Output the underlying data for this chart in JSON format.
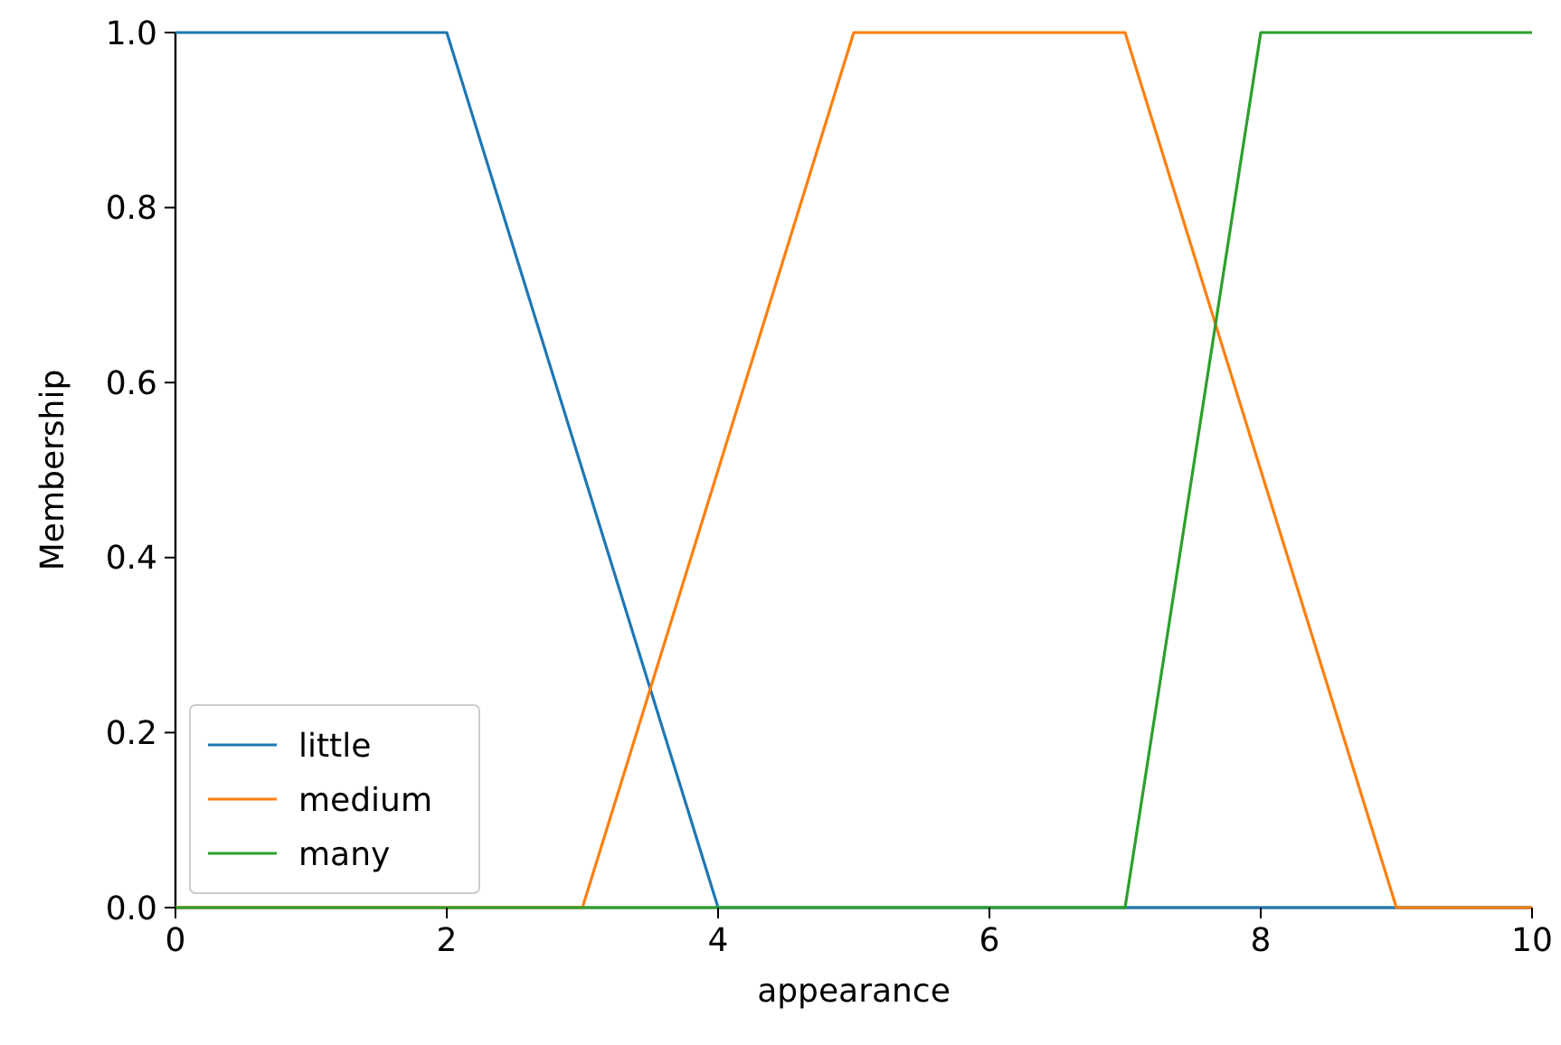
{
  "chart_data": {
    "type": "line",
    "xlabel": "appearance",
    "ylabel": "Membership",
    "xlim": [
      0,
      10
    ],
    "ylim": [
      0,
      1
    ],
    "xticks": [
      0,
      2,
      4,
      6,
      8,
      10
    ],
    "yticks": [
      {
        "value": 0,
        "label": "0.0"
      },
      {
        "value": 0.2,
        "label": "0.2"
      },
      {
        "value": 0.4,
        "label": "0.4"
      },
      {
        "value": 0.6,
        "label": "0.6"
      },
      {
        "value": 0.8,
        "label": "0.8"
      },
      {
        "value": 1,
        "label": "1.0"
      }
    ],
    "legend": "bottom left",
    "series": [
      {
        "name": "little",
        "color": "#1f77b4",
        "x": [
          0,
          2,
          4,
          10
        ],
        "values": [
          1,
          1,
          0,
          0
        ]
      },
      {
        "name": "medium",
        "color": "#ff7f0e",
        "x": [
          0,
          3,
          5,
          7,
          9,
          10
        ],
        "values": [
          0,
          0,
          1,
          1,
          0,
          0
        ]
      },
      {
        "name": "many",
        "color": "#2ca02c",
        "x": [
          0,
          7,
          8,
          10
        ],
        "values": [
          0,
          0,
          1,
          1
        ]
      }
    ]
  }
}
